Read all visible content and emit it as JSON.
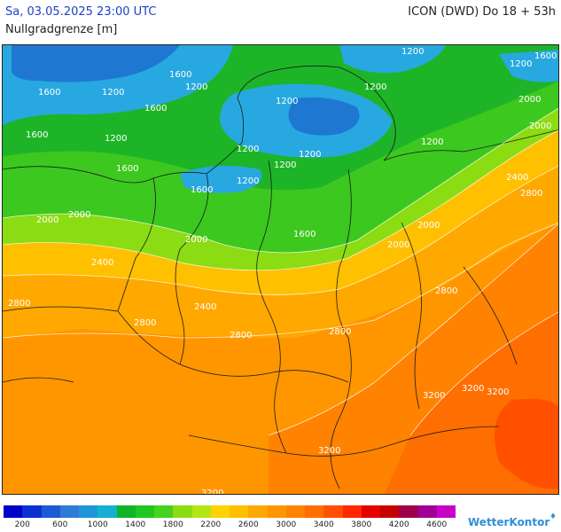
{
  "header": {
    "datetime": "Sa, 03.05.2025 23:00 UTC",
    "model": "ICON (DWD) Do 18 + 53h",
    "parameter": "Nullgradgrenze [m]"
  },
  "map": {
    "contour_labels": [
      "1600",
      "1200",
      "1200",
      "1600",
      "1200",
      "1600",
      "1200",
      "1200",
      "1200",
      "1200",
      "1200",
      "1600",
      "1200",
      "1200",
      "1600",
      "1200",
      "1200",
      "1600",
      "1600",
      "1600",
      "2000",
      "2000",
      "2000",
      "2000",
      "2000",
      "2000",
      "2400",
      "2800",
      "2400",
      "2000",
      "2800",
      "2800",
      "2400",
      "2800",
      "2800",
      "2800",
      "3200",
      "3200",
      "3200",
      "3200",
      "3200"
    ]
  },
  "legend": {
    "colors": [
      "#0000c8",
      "#0a32d2",
      "#1e5ad2",
      "#2e7ad6",
      "#1e96d8",
      "#14b0d2",
      "#10b428",
      "#1ec81e",
      "#46d21e",
      "#8cdc14",
      "#b4e614",
      "#ffd200",
      "#ffc000",
      "#ffa800",
      "#ff9600",
      "#ff8200",
      "#ff6e00",
      "#ff5000",
      "#ff2800",
      "#e60000",
      "#c80000",
      "#a0004a",
      "#a00096",
      "#c800c8"
    ],
    "labels": [
      "200",
      "600",
      "1000",
      "1400",
      "1800",
      "2200",
      "2600",
      "3000",
      "3400",
      "3800",
      "4200",
      "4600"
    ]
  },
  "brand": {
    "name": "WetterKontor",
    "mark": "♦"
  }
}
